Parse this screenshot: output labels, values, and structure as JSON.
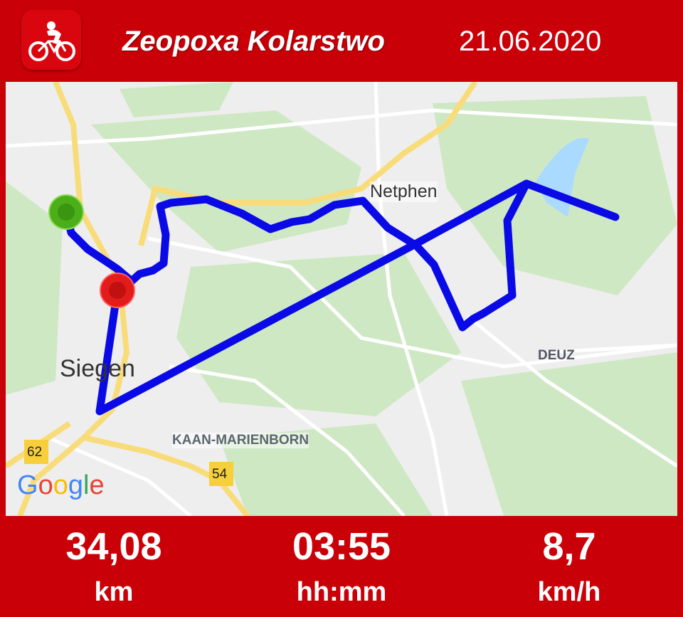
{
  "header": {
    "title": "Zeopoxa Kolarstwo",
    "date": "21.06.2020",
    "app_icon": "cyclist-icon"
  },
  "map": {
    "places": [
      "Netphen",
      "Siegen",
      "DEUZ",
      "KAAN-MARIENBORN"
    ],
    "road_shields": [
      "62",
      "54"
    ],
    "attribution": "Google",
    "start_marker_color": "#4caf1a",
    "end_marker_color": "#e21b1b",
    "route_color": "#0a0ae6"
  },
  "stats": [
    {
      "value": "34,08",
      "unit": "km"
    },
    {
      "value": "03:55",
      "unit": "hh:mm"
    },
    {
      "value": "8,7",
      "unit": "km/h"
    }
  ]
}
